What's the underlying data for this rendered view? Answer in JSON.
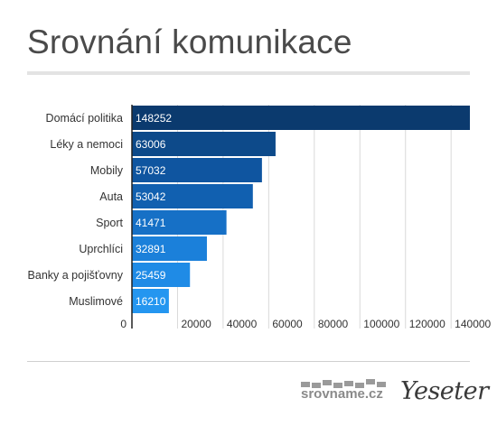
{
  "title": "Srovnání komunikace",
  "chart_data": {
    "type": "bar",
    "orientation": "horizontal",
    "categories": [
      "Domácí politika",
      "Léky a nemoci",
      "Mobily",
      "Auta",
      "Sport",
      "Uprchlíci",
      "Banky a pojišťovny",
      "Muslimové"
    ],
    "values": [
      148252,
      63006,
      57032,
      53042,
      41471,
      32891,
      25459,
      16210
    ],
    "xticks": [
      0,
      20000,
      40000,
      60000,
      80000,
      100000,
      120000,
      140000
    ],
    "xlim": [
      0,
      148252
    ],
    "grid": true,
    "colors": [
      "#0b3a6e",
      "#0d4a8a",
      "#0f55a0",
      "#1160b0",
      "#1670c6",
      "#1b80da",
      "#1f8be6",
      "#2496f0"
    ],
    "label_color": "#ffffff"
  },
  "footer": {
    "brand": "srovname.cz",
    "logo": "Yeseter"
  }
}
